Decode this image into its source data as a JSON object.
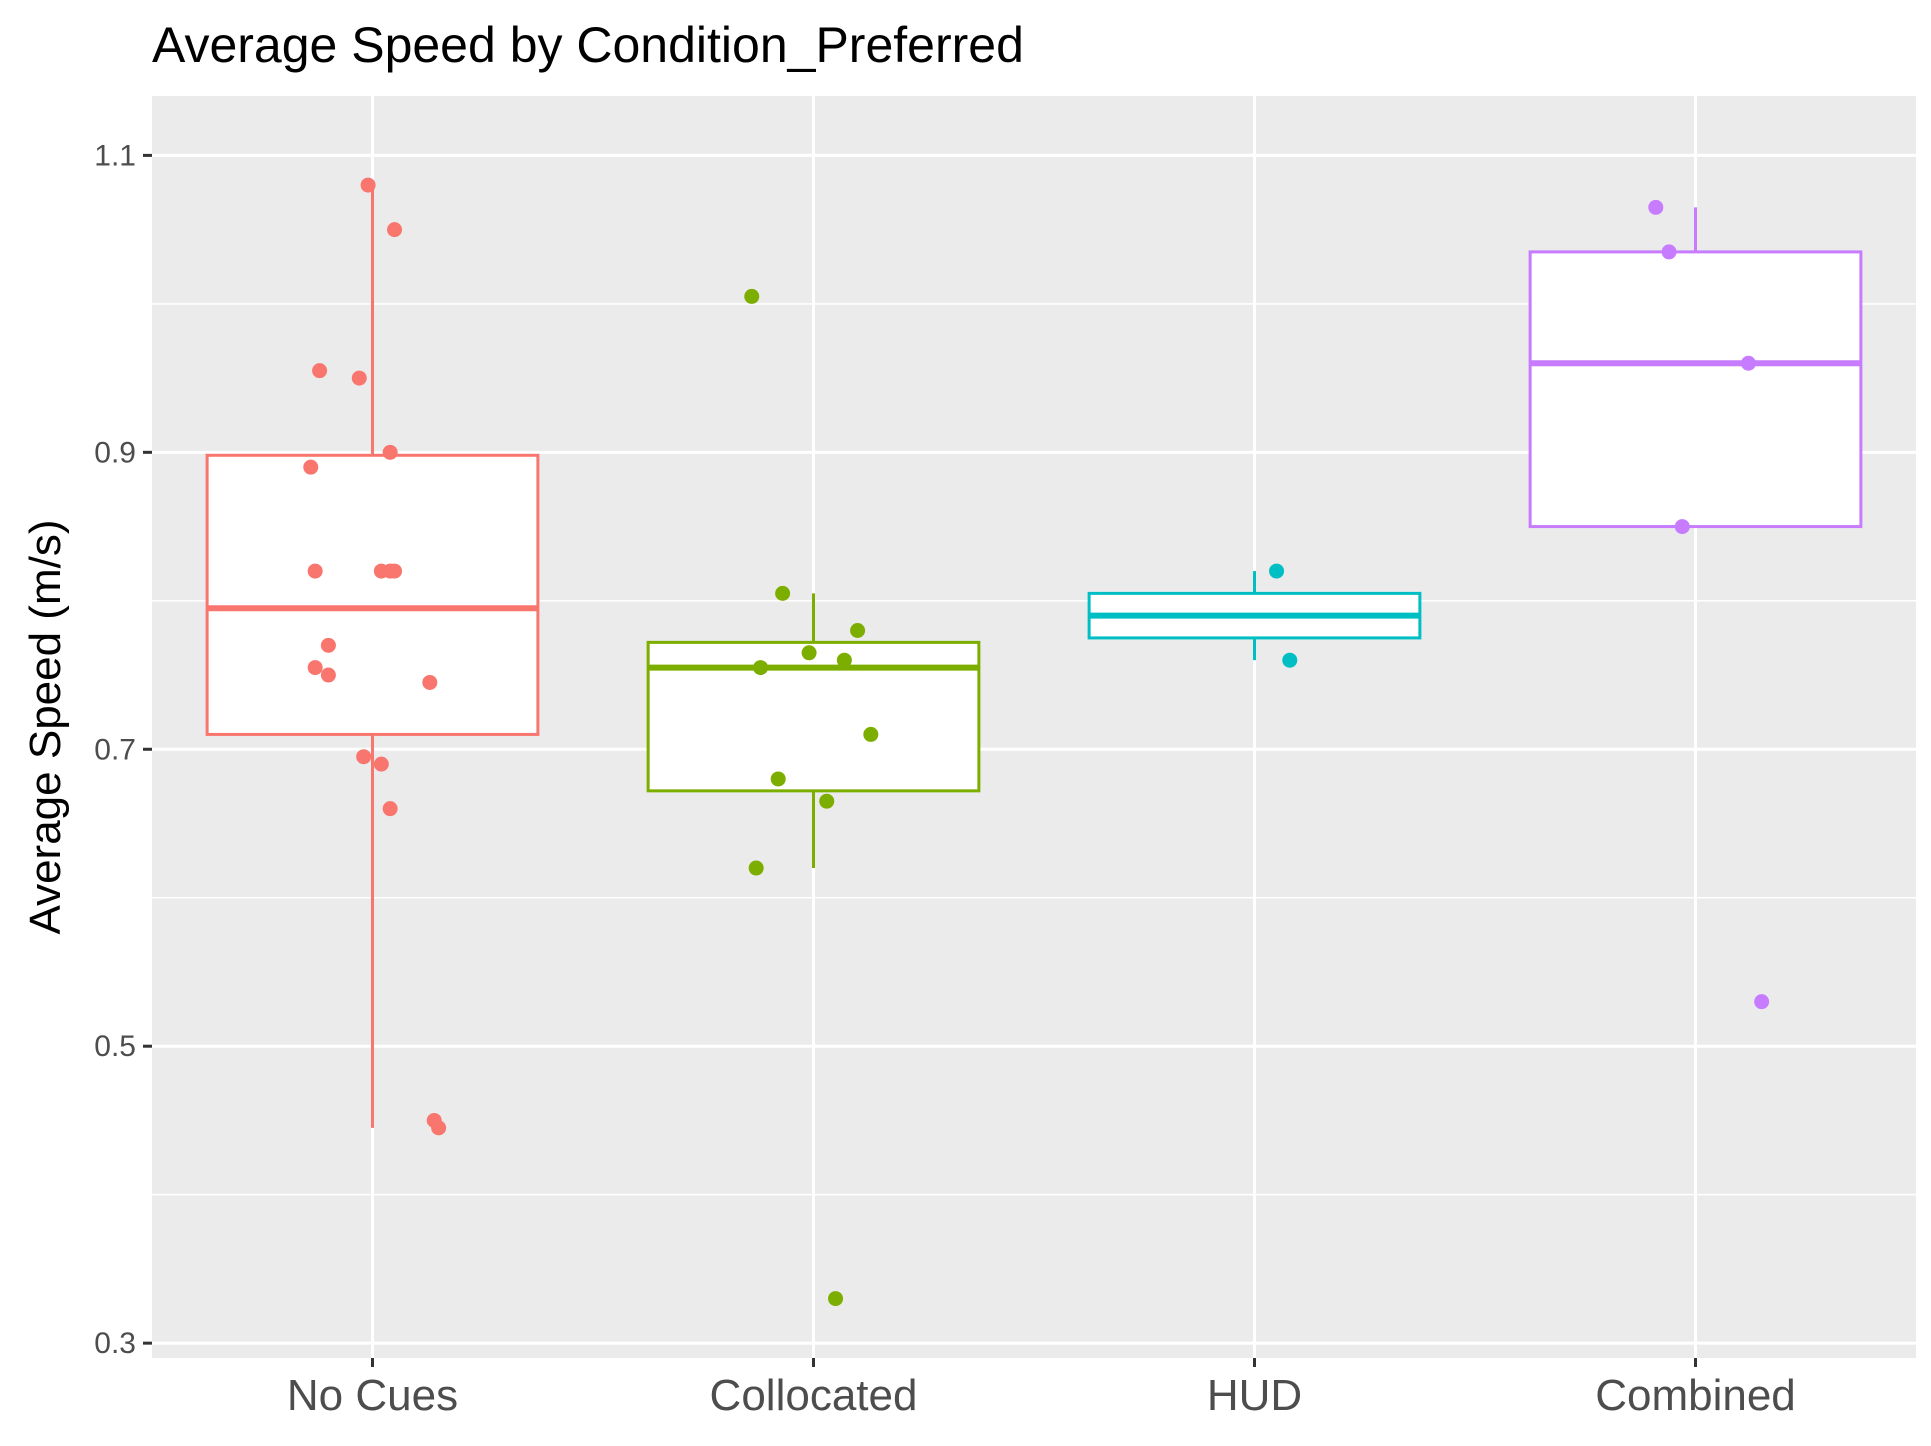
{
  "chart_data": {
    "type": "boxplot",
    "title": "Average Speed by Condition_Preferred",
    "xlabel": "",
    "ylabel": "Average Speed (m/s)",
    "ylim": [
      0.29,
      1.14
    ],
    "y_ticks": [
      0.3,
      0.5,
      0.7,
      0.9,
      1.1
    ],
    "y_tick_labels": [
      "0.3",
      "0.5",
      "0.7",
      "0.9",
      "1.1"
    ],
    "y_minor_ticks": [
      0.4,
      0.6,
      0.8,
      1.0
    ],
    "categories": [
      "No Cues",
      "Collocated",
      "HUD",
      "Combined"
    ],
    "grid": true,
    "legend": "none",
    "background": "#ebebeb",
    "groups": [
      {
        "name": "No Cues",
        "color": "#f8766d",
        "box": {
          "whisker_low": 0.445,
          "q1": 0.71,
          "median": 0.795,
          "q3": 0.898,
          "whisker_high": 1.08
        },
        "points": [
          {
            "x_jitter": -0.01,
            "y": 1.08
          },
          {
            "x_jitter": 0.05,
            "y": 1.05
          },
          {
            "x_jitter": -0.12,
            "y": 0.955
          },
          {
            "x_jitter": -0.03,
            "y": 0.95
          },
          {
            "x_jitter": 0.04,
            "y": 0.9
          },
          {
            "x_jitter": -0.14,
            "y": 0.89
          },
          {
            "x_jitter": -0.13,
            "y": 0.82
          },
          {
            "x_jitter": 0.02,
            "y": 0.82
          },
          {
            "x_jitter": 0.04,
            "y": 0.82
          },
          {
            "x_jitter": 0.05,
            "y": 0.82
          },
          {
            "x_jitter": -0.1,
            "y": 0.77
          },
          {
            "x_jitter": -0.13,
            "y": 0.755
          },
          {
            "x_jitter": -0.1,
            "y": 0.75
          },
          {
            "x_jitter": 0.13,
            "y": 0.745
          },
          {
            "x_jitter": -0.02,
            "y": 0.695
          },
          {
            "x_jitter": 0.02,
            "y": 0.69
          },
          {
            "x_jitter": 0.04,
            "y": 0.66
          },
          {
            "x_jitter": 0.14,
            "y": 0.45
          },
          {
            "x_jitter": 0.15,
            "y": 0.445
          }
        ]
      },
      {
        "name": "Collocated",
        "color": "#7cae00",
        "box": {
          "whisker_low": 0.62,
          "q1": 0.672,
          "median": 0.755,
          "q3": 0.772,
          "whisker_high": 0.805
        },
        "points": [
          {
            "x_jitter": -0.14,
            "y": 1.005
          },
          {
            "x_jitter": -0.07,
            "y": 0.805
          },
          {
            "x_jitter": 0.1,
            "y": 0.78
          },
          {
            "x_jitter": -0.01,
            "y": 0.765
          },
          {
            "x_jitter": 0.07,
            "y": 0.76
          },
          {
            "x_jitter": -0.12,
            "y": 0.755
          },
          {
            "x_jitter": 0.13,
            "y": 0.71
          },
          {
            "x_jitter": -0.08,
            "y": 0.68
          },
          {
            "x_jitter": 0.03,
            "y": 0.665
          },
          {
            "x_jitter": -0.13,
            "y": 0.62
          },
          {
            "x_jitter": 0.05,
            "y": 0.33
          }
        ]
      },
      {
        "name": "HUD",
        "color": "#00bfc4",
        "box": {
          "whisker_low": 0.76,
          "q1": 0.775,
          "median": 0.79,
          "q3": 0.805,
          "whisker_high": 0.82
        },
        "points": [
          {
            "x_jitter": 0.05,
            "y": 0.82
          },
          {
            "x_jitter": 0.08,
            "y": 0.76
          }
        ]
      },
      {
        "name": "Combined",
        "color": "#c77cff",
        "box": {
          "whisker_low": 0.85,
          "q1": 0.85,
          "median": 0.96,
          "q3": 1.035,
          "whisker_high": 1.065
        },
        "points": [
          {
            "x_jitter": -0.09,
            "y": 1.065
          },
          {
            "x_jitter": -0.06,
            "y": 1.035
          },
          {
            "x_jitter": 0.12,
            "y": 0.96
          },
          {
            "x_jitter": -0.03,
            "y": 0.85
          },
          {
            "x_jitter": 0.15,
            "y": 0.53
          }
        ]
      }
    ]
  }
}
